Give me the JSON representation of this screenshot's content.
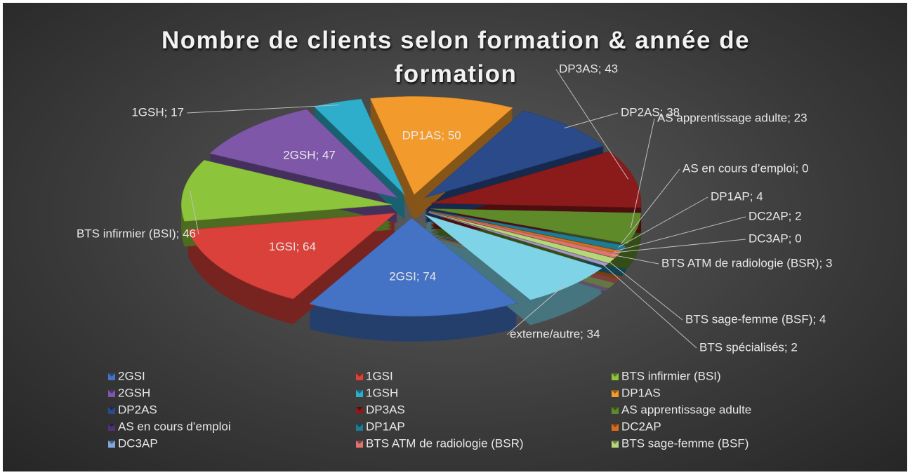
{
  "chart_data": {
    "type": "pie",
    "title": "Nombre de clients selon formation & année de formation",
    "categories": [
      "2GSI",
      "1GSI",
      "BTS infirmier (BSI)",
      "2GSH",
      "1GSH",
      "DP1AS",
      "DP2AS",
      "DP3AS",
      "AS apprentissage adulte",
      "AS en cours d’emploi",
      "DP1AP",
      "DC2AP",
      "DC3AP",
      "BTS ATM de radiologie (BSR)",
      "BTS sage-femme (BSF)",
      "BTS spécialisés",
      "externe/autre"
    ],
    "values": [
      74,
      64,
      46,
      47,
      17,
      50,
      38,
      43,
      23,
      0,
      4,
      2,
      0,
      3,
      4,
      2,
      34
    ],
    "value_labels": [
      "2GSI; 74",
      "1GSI; 64",
      "BTS infirmier (BSI); 46",
      "2GSH; 47",
      "1GSH; 17",
      "DP1AS; 50",
      "DP2AS; 38",
      "DP3AS; 43",
      "AS apprentissage adulte; 23",
      "AS en cours d’emploi; 0",
      "DP1AP; 4",
      "DC2AP; 2",
      "DC3AP; 0",
      "BTS ATM de radiologie (BSR); 3",
      "BTS sage-femme (BSF); 4",
      "BTS spécialisés; 2",
      "externe/autre; 34"
    ],
    "colors": [
      "#4472c4",
      "#d9413a",
      "#8cc43c",
      "#7e57a8",
      "#2eaecb",
      "#f39a2c",
      "#2a4a8a",
      "#8b1a1a",
      "#5f8a2a",
      "#4b3470",
      "#1f7a92",
      "#d86d1e",
      "#7fa7dc",
      "#e0736f",
      "#b5d77a",
      "#a994c8",
      "#7fd3e6"
    ],
    "legend": "bottom"
  }
}
